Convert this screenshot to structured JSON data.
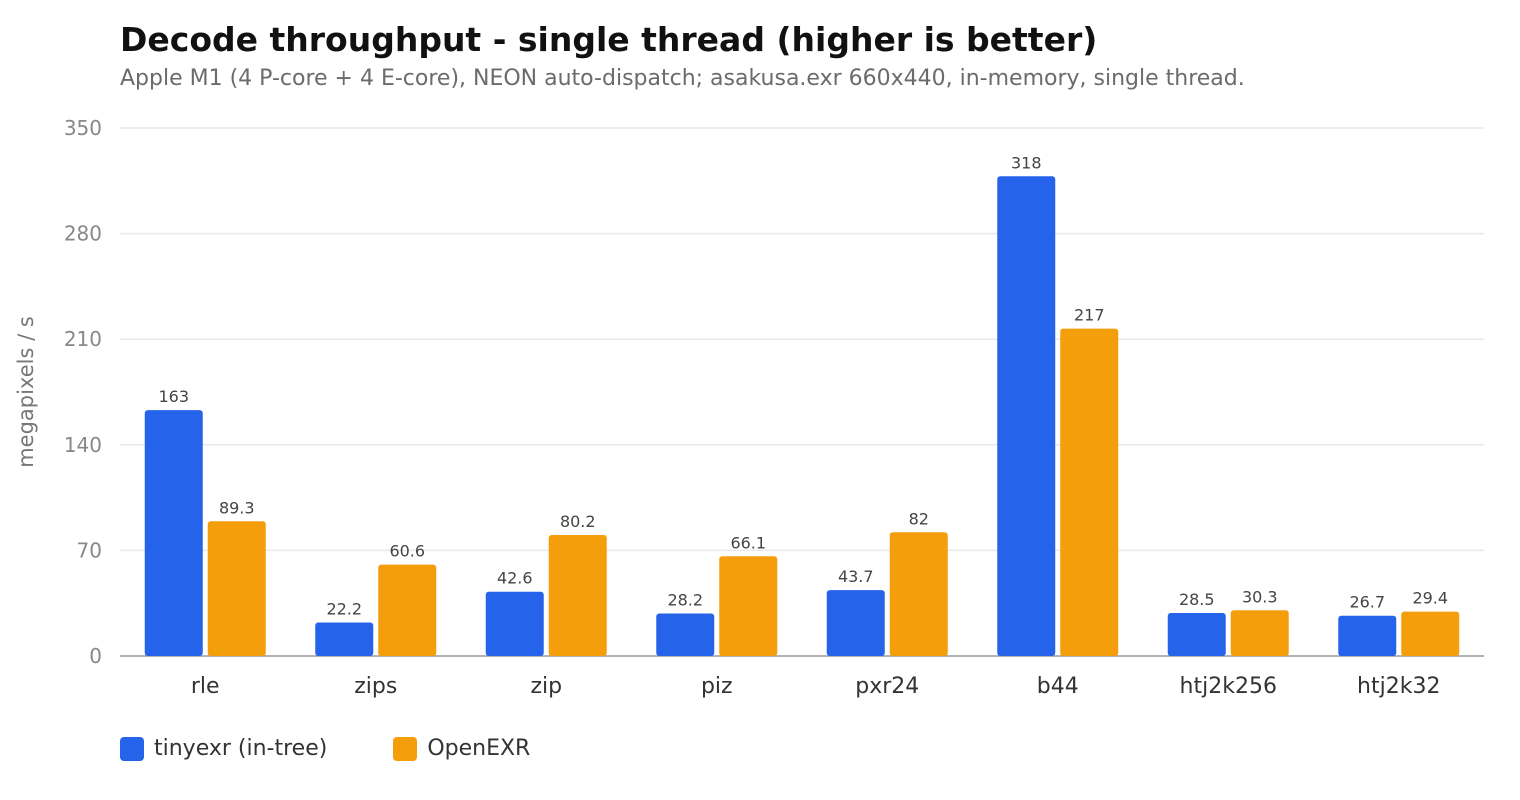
{
  "chart_data": {
    "type": "bar",
    "title": "Decode throughput - single thread (higher is better)",
    "subtitle": "Apple M1 (4 P-core + 4 E-core), NEON auto-dispatch; asakusa.exr 660x440, in-memory, single thread.",
    "ylabel": "megapixels / s",
    "xlabel": "",
    "ylim": [
      0,
      350
    ],
    "yticks": [
      0,
      70,
      140,
      210,
      280,
      350
    ],
    "grid": true,
    "legend_position": "bottom-left",
    "categories": [
      "rle",
      "zips",
      "zip",
      "piz",
      "pxr24",
      "b44",
      "htj2k256",
      "htj2k32"
    ],
    "series": [
      {
        "name": "tinyexr (in-tree)",
        "color": "#2563eb",
        "values": [
          163,
          22.2,
          42.6,
          28.2,
          43.7,
          318,
          28.5,
          26.7
        ]
      },
      {
        "name": "OpenEXR",
        "color": "#f59e0b",
        "values": [
          89.3,
          60.6,
          80.2,
          66.1,
          82,
          217,
          30.3,
          29.4
        ]
      }
    ]
  }
}
